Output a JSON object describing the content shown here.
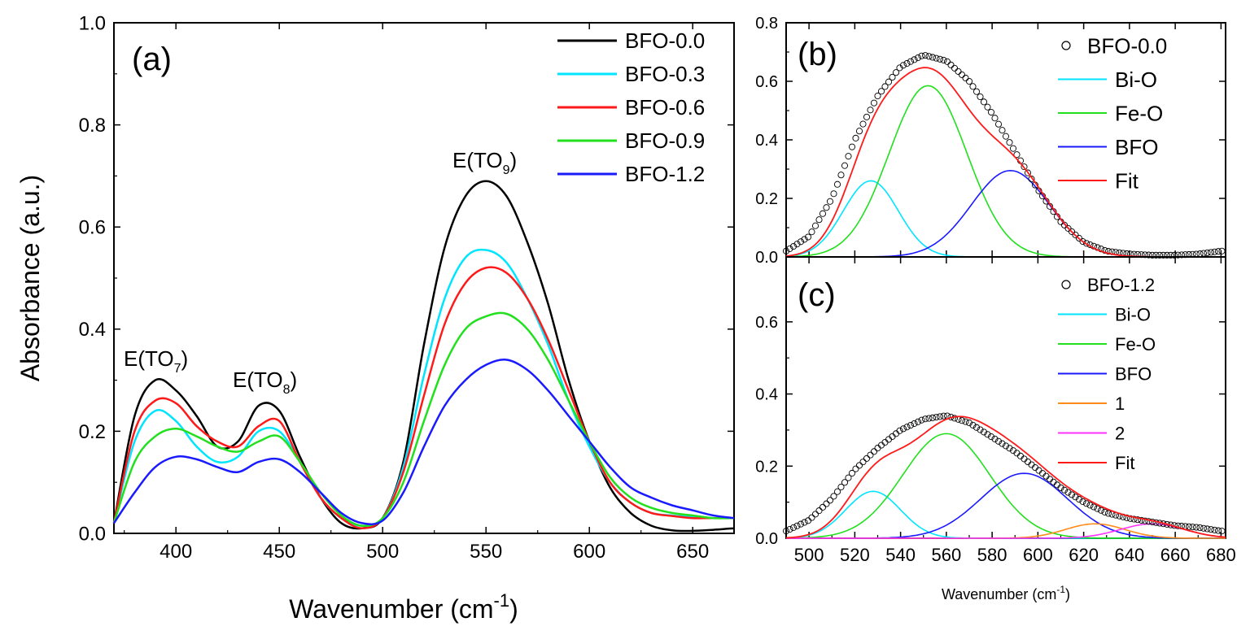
{
  "figure": {
    "panels": [
      "(a)",
      "(b)",
      "(c)"
    ],
    "xlabel_a": "Wavenumber (cm",
    "xlabel_a_sup": "-1",
    "xlabel_bc": "Wavenumber (cm",
    "xlabel_bc_sup": "-1",
    "ylabel_a": "Absorbance (a.u.)",
    "peak_labels": [
      {
        "base": "E(TO",
        "sub": "7",
        "end": ")"
      },
      {
        "base": "E(TO",
        "sub": "8",
        "end": ")"
      },
      {
        "base": "E(TO",
        "sub": "9",
        "end": ")"
      }
    ]
  },
  "chart_data": [
    {
      "panel": "(a)",
      "type": "line",
      "xlabel": "Wavenumber (cm-1)",
      "ylabel": "Absorbance (a.u.)",
      "xlim": [
        370,
        670
      ],
      "ylim": [
        0.0,
        1.0
      ],
      "xticks": [
        "400",
        "450",
        "500",
        "550",
        "600",
        "650"
      ],
      "yticks": [
        "0.0",
        "0.2",
        "0.4",
        "0.6",
        "0.8",
        "1.0"
      ],
      "legend_position": "top-right",
      "annotations": [
        "E(TO7)",
        "E(TO8)",
        "E(TO9)"
      ],
      "series": [
        {
          "name": "BFO-0.0",
          "color": "#000000",
          "x": [
            370,
            380,
            390,
            400,
            410,
            420,
            430,
            440,
            450,
            460,
            470,
            480,
            490,
            500,
            510,
            520,
            530,
            540,
            550,
            560,
            570,
            580,
            590,
            600,
            610,
            620,
            630,
            640,
            650,
            660,
            670
          ],
          "y": [
            0.02,
            0.23,
            0.3,
            0.28,
            0.23,
            0.17,
            0.18,
            0.25,
            0.24,
            0.15,
            0.07,
            0.02,
            0.01,
            0.03,
            0.14,
            0.37,
            0.56,
            0.66,
            0.69,
            0.66,
            0.57,
            0.45,
            0.3,
            0.18,
            0.09,
            0.04,
            0.015,
            0.006,
            0.005,
            0.007,
            0.01
          ]
        },
        {
          "name": "BFO-0.3",
          "color": "#00e5ff",
          "x": [
            370,
            380,
            390,
            400,
            410,
            420,
            430,
            440,
            450,
            460,
            470,
            480,
            490,
            500,
            510,
            520,
            530,
            540,
            550,
            560,
            570,
            580,
            590,
            600,
            610,
            620,
            630,
            640,
            650,
            660,
            670
          ],
          "y": [
            0.02,
            0.18,
            0.24,
            0.22,
            0.17,
            0.14,
            0.15,
            0.2,
            0.2,
            0.14,
            0.07,
            0.03,
            0.015,
            0.03,
            0.13,
            0.31,
            0.46,
            0.54,
            0.555,
            0.53,
            0.46,
            0.37,
            0.26,
            0.17,
            0.1,
            0.06,
            0.04,
            0.035,
            0.032,
            0.03,
            0.03
          ]
        },
        {
          "name": "BFO-0.6",
          "color": "#ff1a1a",
          "x": [
            370,
            380,
            390,
            400,
            410,
            420,
            430,
            440,
            450,
            460,
            470,
            480,
            490,
            500,
            510,
            520,
            530,
            540,
            550,
            560,
            570,
            580,
            590,
            600,
            610,
            620,
            630,
            640,
            650,
            660,
            670
          ],
          "y": [
            0.02,
            0.2,
            0.26,
            0.255,
            0.21,
            0.18,
            0.17,
            0.21,
            0.22,
            0.14,
            0.07,
            0.03,
            0.01,
            0.03,
            0.12,
            0.27,
            0.41,
            0.49,
            0.52,
            0.51,
            0.46,
            0.38,
            0.28,
            0.18,
            0.1,
            0.06,
            0.04,
            0.034,
            0.03,
            0.03,
            0.03
          ]
        },
        {
          "name": "BFO-0.9",
          "color": "#22e01e",
          "x": [
            370,
            380,
            390,
            400,
            410,
            420,
            430,
            440,
            450,
            460,
            470,
            480,
            490,
            500,
            510,
            520,
            530,
            540,
            550,
            560,
            570,
            580,
            590,
            600,
            610,
            620,
            630,
            640,
            650,
            660,
            670
          ],
          "y": [
            0.02,
            0.14,
            0.19,
            0.205,
            0.19,
            0.17,
            0.16,
            0.18,
            0.19,
            0.14,
            0.08,
            0.035,
            0.015,
            0.03,
            0.1,
            0.22,
            0.33,
            0.4,
            0.425,
            0.43,
            0.4,
            0.34,
            0.26,
            0.18,
            0.11,
            0.07,
            0.05,
            0.04,
            0.035,
            0.03,
            0.03
          ]
        },
        {
          "name": "BFO-1.2",
          "color": "#1a1aff",
          "x": [
            370,
            380,
            390,
            400,
            410,
            420,
            430,
            440,
            450,
            460,
            470,
            480,
            490,
            500,
            510,
            520,
            530,
            540,
            550,
            560,
            570,
            580,
            590,
            600,
            610,
            620,
            630,
            640,
            650,
            660,
            670
          ],
          "y": [
            0.02,
            0.08,
            0.13,
            0.15,
            0.145,
            0.13,
            0.12,
            0.14,
            0.145,
            0.12,
            0.08,
            0.04,
            0.02,
            0.025,
            0.08,
            0.17,
            0.25,
            0.3,
            0.33,
            0.34,
            0.32,
            0.28,
            0.23,
            0.18,
            0.13,
            0.09,
            0.07,
            0.055,
            0.045,
            0.035,
            0.03
          ]
        }
      ]
    },
    {
      "panel": "(b)",
      "type": "line",
      "xlim": [
        490,
        682
      ],
      "ylim": [
        0.0,
        0.8
      ],
      "yticks": [
        "0.0",
        "0.2",
        "0.4",
        "0.6",
        "0.8"
      ],
      "legend_position": "top-right",
      "data": {
        "name": "BFO-0.0",
        "marker": "open-circle",
        "color": "#000000",
        "x": [
          490,
          500,
          510,
          520,
          530,
          540,
          550,
          560,
          570,
          580,
          590,
          600,
          610,
          620,
          630,
          640,
          650,
          660,
          670,
          680
        ],
        "y": [
          0.02,
          0.07,
          0.2,
          0.4,
          0.55,
          0.65,
          0.69,
          0.67,
          0.6,
          0.49,
          0.36,
          0.23,
          0.12,
          0.05,
          0.02,
          0.01,
          0.006,
          0.006,
          0.01,
          0.02
        ]
      },
      "series": [
        {
          "name": "Bi-O",
          "color": "#00e5ff",
          "peak": {
            "center": 527,
            "height": 0.26,
            "sigma": 12
          }
        },
        {
          "name": "Fe-O",
          "color": "#22e01e",
          "peak": {
            "center": 552,
            "height": 0.585,
            "sigma": 17
          }
        },
        {
          "name": "BFO",
          "color": "#1a1aff",
          "peak": {
            "center": 588,
            "height": 0.295,
            "sigma": 17
          }
        },
        {
          "name": "Fit",
          "color": "#ff1a1a",
          "sum_of": [
            "Bi-O",
            "Fe-O",
            "BFO"
          ]
        }
      ]
    },
    {
      "panel": "(c)",
      "type": "line",
      "xlabel": "Wavenumber (cm-1)",
      "xlim": [
        490,
        682
      ],
      "ylim": [
        0.0,
        0.78
      ],
      "xticks": [
        "500",
        "520",
        "540",
        "560",
        "580",
        "600",
        "620",
        "640",
        "660",
        "680"
      ],
      "yticks": [
        "0.0",
        "0.2",
        "0.4",
        "0.6"
      ],
      "legend_position": "top-right",
      "data": {
        "name": "BFO-1.2",
        "marker": "open-circle",
        "color": "#000000",
        "x": [
          490,
          500,
          510,
          520,
          530,
          540,
          550,
          560,
          570,
          580,
          590,
          600,
          610,
          620,
          630,
          640,
          650,
          660,
          670,
          680
        ],
        "y": [
          0.02,
          0.05,
          0.11,
          0.19,
          0.25,
          0.3,
          0.33,
          0.34,
          0.32,
          0.28,
          0.24,
          0.19,
          0.14,
          0.1,
          0.07,
          0.055,
          0.045,
          0.035,
          0.03,
          0.02
        ]
      },
      "series": [
        {
          "name": "Bi-O",
          "color": "#00e5ff",
          "peak": {
            "center": 528,
            "height": 0.13,
            "sigma": 12
          }
        },
        {
          "name": "Fe-O",
          "color": "#22e01e",
          "peak": {
            "center": 560,
            "height": 0.29,
            "sigma": 19
          }
        },
        {
          "name": "BFO",
          "color": "#1a1aff",
          "peak": {
            "center": 594,
            "height": 0.18,
            "sigma": 19
          }
        },
        {
          "name": "1",
          "color": "#ff8c1a",
          "peak": {
            "center": 625,
            "height": 0.04,
            "sigma": 13
          }
        },
        {
          "name": "2",
          "color": "#ff33ff",
          "peak": {
            "center": 650,
            "height": 0.04,
            "sigma": 14
          }
        },
        {
          "name": "Fit",
          "color": "#ff1a1a",
          "sum_of": [
            "Bi-O",
            "Fe-O",
            "BFO",
            "1",
            "2"
          ]
        }
      ]
    }
  ]
}
